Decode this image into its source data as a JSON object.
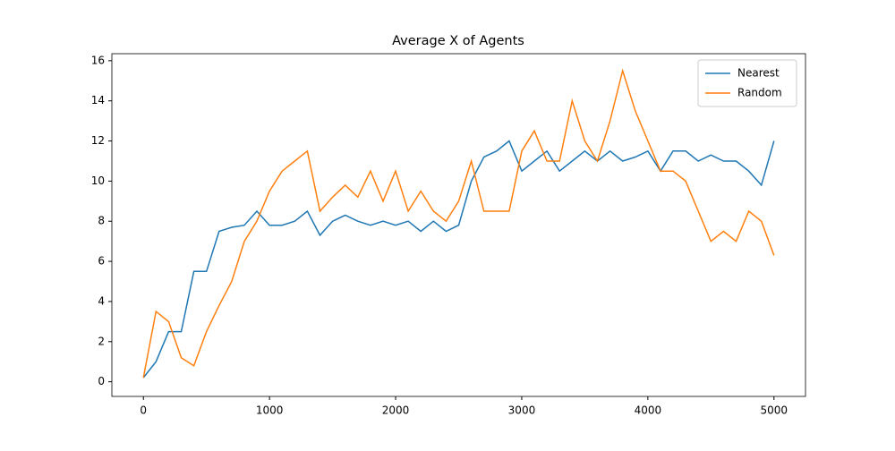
{
  "chart_data": {
    "type": "line",
    "title": "Average X of Agents",
    "x": [
      0,
      100,
      200,
      300,
      400,
      500,
      600,
      700,
      800,
      900,
      1000,
      1100,
      1200,
      1300,
      1400,
      1500,
      1600,
      1700,
      1800,
      1900,
      2000,
      2100,
      2200,
      2300,
      2400,
      2500,
      2600,
      2700,
      2800,
      2900,
      3000,
      3100,
      3200,
      3300,
      3400,
      3500,
      3600,
      3700,
      3800,
      3900,
      4000,
      4100,
      4200,
      4300,
      4400,
      4500,
      4600,
      4700,
      4800,
      4900,
      5000
    ],
    "series": [
      {
        "name": "Nearest",
        "color": "#1f77b4",
        "values": [
          0.2,
          1.0,
          2.5,
          2.5,
          5.5,
          5.5,
          7.5,
          7.7,
          7.8,
          8.5,
          7.8,
          7.8,
          8.0,
          8.5,
          7.3,
          8.0,
          8.3,
          8.0,
          7.8,
          8.0,
          7.8,
          8.0,
          7.5,
          8.0,
          7.5,
          7.8,
          10.0,
          11.2,
          11.5,
          12.0,
          10.5,
          11.0,
          11.5,
          10.5,
          11.0,
          11.5,
          11.0,
          11.5,
          11.0,
          11.2,
          11.5,
          10.5,
          11.5,
          11.5,
          11.0,
          11.3,
          11.0,
          11.0,
          10.5,
          9.8,
          12.0
        ]
      },
      {
        "name": "Random",
        "color": "#ff7f0e",
        "values": [
          0.2,
          3.5,
          3.0,
          1.2,
          0.8,
          2.5,
          3.8,
          5.0,
          7.0,
          8.0,
          9.5,
          10.5,
          11.0,
          11.5,
          8.5,
          9.2,
          9.8,
          9.2,
          10.5,
          9.0,
          10.5,
          8.5,
          9.5,
          8.5,
          8.0,
          9.0,
          11.0,
          8.5,
          8.5,
          8.5,
          11.5,
          12.5,
          11.0,
          11.0,
          14.0,
          12.0,
          11.0,
          13.0,
          15.5,
          13.5,
          12.0,
          10.5,
          10.5,
          10.0,
          8.5,
          7.0,
          7.5,
          7.0,
          8.5,
          8.0,
          6.3
        ]
      }
    ],
    "xlim": [
      -250,
      5250
    ],
    "xticks": [
      0,
      1000,
      2000,
      3000,
      4000,
      5000
    ],
    "ylim": [
      -0.73,
      16.35
    ],
    "yticks": [
      0,
      2,
      4,
      6,
      8,
      10,
      12,
      14,
      16
    ],
    "legend": "upper right"
  }
}
